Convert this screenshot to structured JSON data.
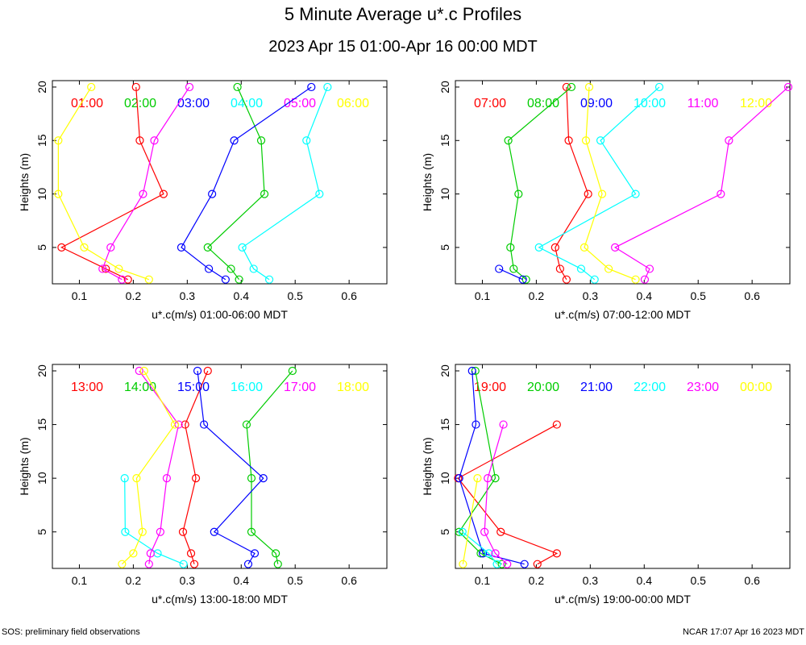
{
  "title": "5 Minute Average u*.c Profiles",
  "subtitle": "2023 Apr 15 01:00-Apr 16 00:00 MDT",
  "footer_left": "SOS: preliminary field observations",
  "footer_right": "NCAR 17:07 Apr 16 2023 MDT",
  "chart_data": [
    {
      "type": "line",
      "xlabel": "u*.c(m/s) 01:00-06:00 MDT",
      "ylabel": "Heights (m)",
      "xlim": [
        0.05,
        0.67
      ],
      "ylim": [
        1.6,
        20.6
      ],
      "xticks": [
        0.1,
        0.2,
        0.3,
        0.4,
        0.5,
        0.6
      ],
      "yticks": [
        5,
        10,
        15,
        20
      ],
      "grid": false,
      "series": [
        {
          "name": "01:00",
          "color": "#ff0000",
          "x": [
            0.205,
            0.212,
            0.256,
            0.067,
            0.149,
            0.19
          ],
          "values": [
            20,
            15,
            10,
            5,
            3,
            2
          ]
        },
        {
          "name": "02:00",
          "color": "#00cc00",
          "x": [
            0.393,
            0.437,
            0.443,
            0.338,
            0.381,
            0.396
          ],
          "values": [
            20,
            15,
            10,
            5,
            3,
            2
          ]
        },
        {
          "name": "03:00",
          "color": "#0000ff",
          "x": [
            0.53,
            0.387,
            0.346,
            0.289,
            0.34,
            0.371
          ],
          "values": [
            20,
            15,
            10,
            5,
            3,
            2
          ]
        },
        {
          "name": "04:00",
          "color": "#00ffff",
          "x": [
            0.56,
            0.521,
            0.545,
            0.402,
            0.423,
            0.452
          ],
          "values": [
            20,
            15,
            10,
            5,
            3,
            2
          ]
        },
        {
          "name": "05:00",
          "color": "#ff00ff",
          "x": [
            0.304,
            0.239,
            0.218,
            0.158,
            0.143,
            0.179
          ],
          "values": [
            20,
            15,
            10,
            5,
            3,
            2
          ]
        },
        {
          "name": "06:00",
          "color": "#ffff00",
          "x": [
            0.122,
            0.061,
            0.061,
            0.109,
            0.173,
            0.229
          ],
          "values": [
            20,
            15,
            10,
            5,
            3,
            2
          ]
        }
      ]
    },
    {
      "type": "line",
      "xlabel": "u*.c(m/s) 07:00-12:00 MDT",
      "ylabel": "Heights (m)",
      "xlim": [
        0.05,
        0.67
      ],
      "ylim": [
        1.6,
        20.6
      ],
      "xticks": [
        0.1,
        0.2,
        0.3,
        0.4,
        0.5,
        0.6
      ],
      "yticks": [
        5,
        10,
        15,
        20
      ],
      "grid": false,
      "series": [
        {
          "name": "07:00",
          "color": "#ff0000",
          "x": [
            0.256,
            0.26,
            0.296,
            0.235,
            0.244,
            0.256
          ],
          "values": [
            20,
            15,
            10,
            5,
            3,
            2
          ]
        },
        {
          "name": "08:00",
          "color": "#00cc00",
          "x": [
            0.265,
            0.148,
            0.167,
            0.152,
            0.158,
            0.181
          ],
          "values": [
            20,
            15,
            10,
            5,
            3,
            2
          ]
        },
        {
          "name": "09:00",
          "color": "#0000ff",
          "x": [
            0.131,
            0.175
          ],
          "values": [
            3,
            2
          ]
        },
        {
          "name": "10:00",
          "color": "#00ffff",
          "x": [
            0.428,
            0.319,
            0.384,
            0.205,
            0.283,
            0.308
          ],
          "values": [
            20,
            15,
            10,
            5,
            3,
            2
          ]
        },
        {
          "name": "11:00",
          "color": "#ff00ff",
          "x": [
            0.667,
            0.557,
            0.542,
            0.346,
            0.41,
            0.401
          ],
          "values": [
            20,
            15,
            10,
            5,
            3,
            2
          ]
        },
        {
          "name": "12:00",
          "color": "#ffff00",
          "x": [
            0.298,
            0.292,
            0.322,
            0.289,
            0.334,
            0.384
          ],
          "values": [
            20,
            15,
            10,
            5,
            3,
            2
          ]
        }
      ]
    },
    {
      "type": "line",
      "xlabel": "u*.c(m/s) 13:00-18:00 MDT",
      "ylabel": "Heights (m)",
      "xlim": [
        0.05,
        0.67
      ],
      "ylim": [
        1.6,
        20.6
      ],
      "xticks": [
        0.1,
        0.2,
        0.3,
        0.4,
        0.5,
        0.6
      ],
      "yticks": [
        5,
        10,
        15,
        20
      ],
      "grid": false,
      "series": [
        {
          "name": "13:00",
          "color": "#ff0000",
          "x": [
            0.338,
            0.296,
            0.316,
            0.292,
            0.307,
            0.313
          ],
          "values": [
            20,
            15,
            10,
            5,
            3,
            2
          ]
        },
        {
          "name": "14:00",
          "color": "#00cc00",
          "x": [
            0.495,
            0.41,
            0.419,
            0.419,
            0.464,
            0.468
          ],
          "values": [
            20,
            15,
            10,
            5,
            3,
            2
          ]
        },
        {
          "name": "15:00",
          "color": "#0000ff",
          "x": [
            0.319,
            0.331,
            0.441,
            0.35,
            0.425,
            0.413
          ],
          "values": [
            20,
            15,
            10,
            5,
            3,
            2
          ]
        },
        {
          "name": "16:00",
          "color": "#00ffff",
          "x": [
            0.184,
            0.185,
            0.245,
            0.293
          ],
          "values": [
            10,
            5,
            3,
            2
          ]
        },
        {
          "name": "17:00",
          "color": "#ff00ff",
          "x": [
            0.211,
            0.284,
            0.262,
            0.25,
            0.232,
            0.229
          ],
          "values": [
            20,
            15,
            10,
            5,
            3,
            2
          ]
        },
        {
          "name": "18:00",
          "color": "#ffff00",
          "x": [
            0.22,
            0.277,
            0.206,
            0.217,
            0.2,
            0.179
          ],
          "values": [
            20,
            15,
            10,
            5,
            3,
            2
          ]
        }
      ]
    },
    {
      "type": "line",
      "xlabel": "u*.c(m/s) 19:00-00:00 MDT",
      "ylabel": "Heights (m)",
      "xlim": [
        0.05,
        0.67
      ],
      "ylim": [
        1.6,
        20.6
      ],
      "xticks": [
        0.1,
        0.2,
        0.3,
        0.4,
        0.5,
        0.6
      ],
      "yticks": [
        5,
        10,
        15,
        20
      ],
      "grid": false,
      "series": [
        {
          "name": "19:00",
          "color": "#ff0000",
          "x": [
            0.238,
            0.055,
            0.134,
            0.238,
            0.202
          ],
          "values": [
            15,
            10,
            5,
            3,
            2
          ]
        },
        {
          "name": "20:00",
          "color": "#00cc00",
          "x": [
            0.087,
            0.124,
            0.057,
            0.097,
            0.136
          ],
          "values": [
            20,
            10,
            5,
            3,
            2
          ]
        },
        {
          "name": "21:00",
          "color": "#0000ff",
          "x": [
            0.081,
            0.088,
            0.057,
            0.101,
            0.178
          ],
          "values": [
            20,
            15,
            10,
            3,
            2
          ]
        },
        {
          "name": "22:00",
          "color": "#00ffff",
          "x": [
            0.063,
            0.112,
            0.127
          ],
          "values": [
            5,
            3,
            2
          ]
        },
        {
          "name": "23:00",
          "color": "#ff00ff",
          "x": [
            0.139,
            0.11,
            0.104,
            0.124,
            0.146
          ],
          "values": [
            15,
            10,
            5,
            3,
            2
          ]
        },
        {
          "name": "00:00",
          "color": "#ffff00",
          "x": [
            0.091,
            0.064
          ],
          "values": [
            10,
            2
          ]
        }
      ]
    }
  ]
}
